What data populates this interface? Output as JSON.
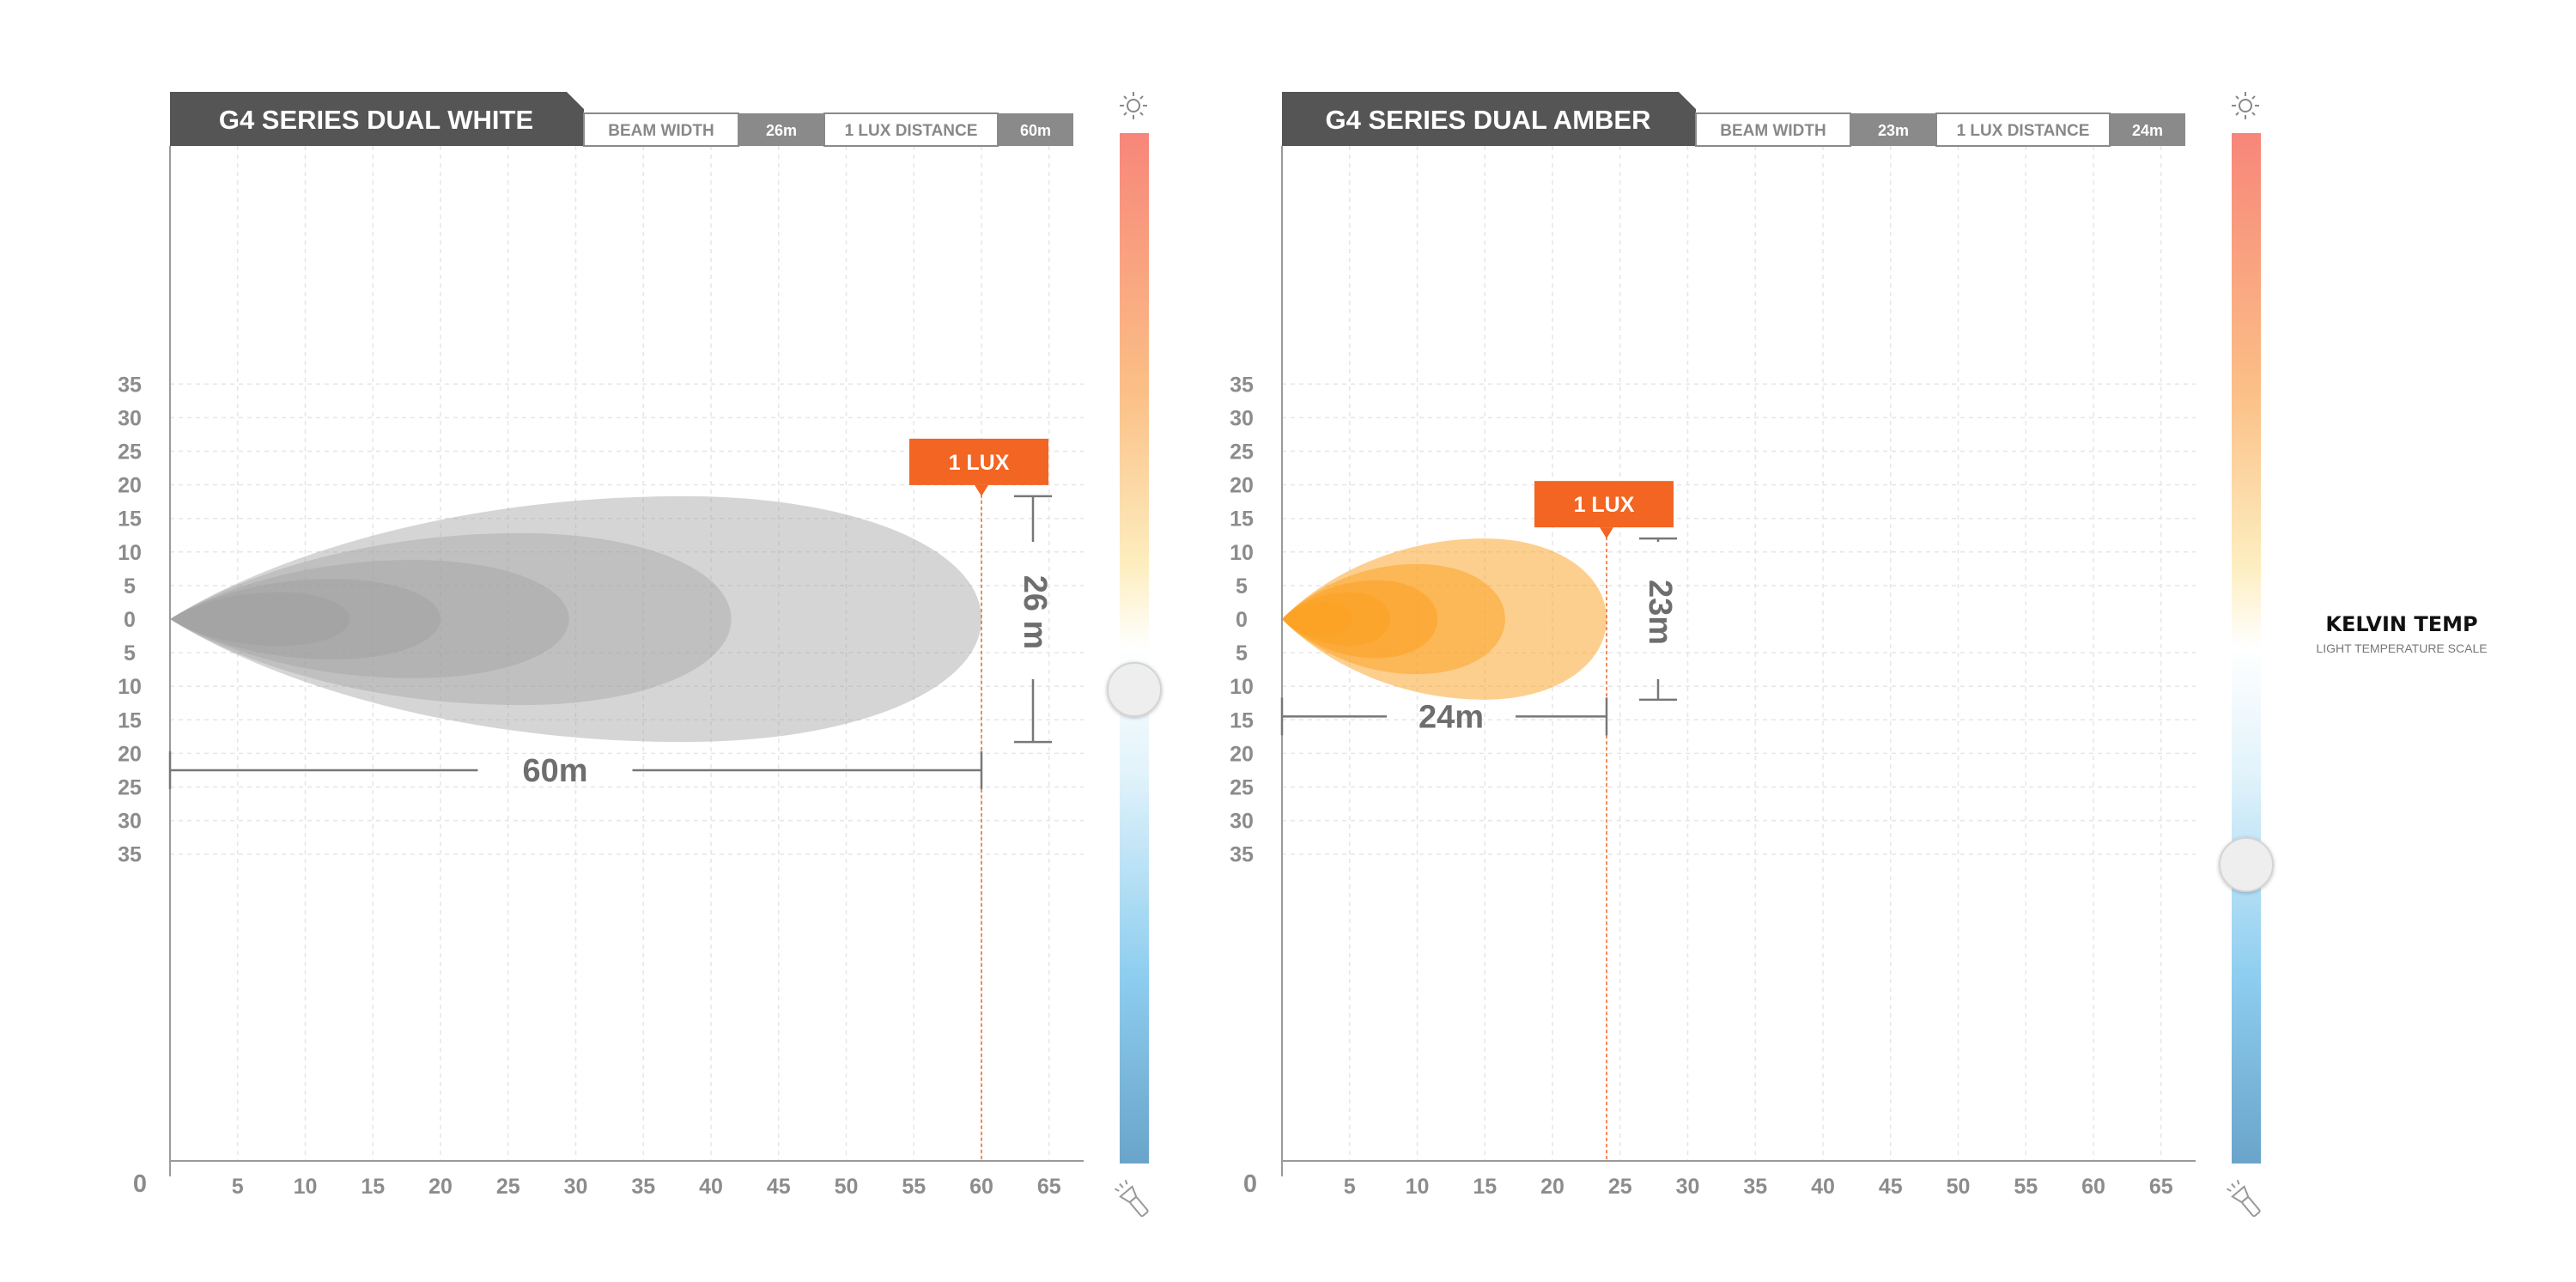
{
  "chart_data": [
    {
      "type": "area",
      "title": "G4 SERIES DUAL WHITE",
      "stats": [
        {
          "label": "BEAM WIDTH",
          "value": "26m"
        },
        {
          "label": "1 LUX DISTANCE",
          "value": "60m"
        }
      ],
      "x_ticks": [
        "5",
        "10",
        "15",
        "20",
        "25",
        "30",
        "35",
        "40",
        "45",
        "50",
        "55",
        "60",
        "65"
      ],
      "y_ticks_upper": [
        "35",
        "30",
        "25",
        "20",
        "15",
        "10",
        "5"
      ],
      "y_tick_zero": "0",
      "y_ticks_lower": [
        "5",
        "10",
        "15",
        "20",
        "25",
        "30",
        "35"
      ],
      "origin_label": "0",
      "xlim": [
        0,
        68
      ],
      "ylim": [
        -40,
        35
      ],
      "grid": true,
      "beam_color": "#9a9a9a",
      "beam_layers": [
        {
          "reach": 60,
          "half_width": 18.3,
          "peak_x": 38,
          "opacity": 0.42
        },
        {
          "reach": 41.5,
          "half_width": 12.8,
          "peak_x": 26,
          "opacity": 0.35
        },
        {
          "reach": 29.5,
          "half_width": 8.8,
          "peak_x": 18,
          "opacity": 0.35
        },
        {
          "reach": 20,
          "half_width": 6.0,
          "peak_x": 12,
          "opacity": 0.35
        },
        {
          "reach": 13.3,
          "half_width": 4.0,
          "peak_x": 8,
          "opacity": 0.35
        }
      ],
      "lux_label": "1 LUX",
      "lux_x": 60,
      "width_label": "26 m",
      "distance_label": "60m",
      "distance_y": -22.5,
      "gauge_level": 0.54
    },
    {
      "type": "area",
      "title": "G4 SERIES DUAL AMBER",
      "stats": [
        {
          "label": "BEAM WIDTH",
          "value": "23m"
        },
        {
          "label": "1 LUX DISTANCE",
          "value": "24m"
        }
      ],
      "x_ticks": [
        "5",
        "10",
        "15",
        "20",
        "25",
        "30",
        "35",
        "40",
        "45",
        "50",
        "55",
        "60",
        "65"
      ],
      "y_ticks_upper": [
        "35",
        "30",
        "25",
        "20",
        "15",
        "10",
        "5"
      ],
      "y_tick_zero": "0",
      "y_ticks_lower": [
        "5",
        "10",
        "15",
        "20",
        "25",
        "30",
        "35"
      ],
      "origin_label": "0",
      "xlim": [
        0,
        68
      ],
      "ylim": [
        -40,
        35
      ],
      "grid": true,
      "beam_color": "#fba01e",
      "beam_layers": [
        {
          "reach": 24,
          "half_width": 12.0,
          "peak_x": 15,
          "opacity": 0.5
        },
        {
          "reach": 16.5,
          "half_width": 8.2,
          "peak_x": 10,
          "opacity": 0.5
        },
        {
          "reach": 11.5,
          "half_width": 5.8,
          "peak_x": 7,
          "opacity": 0.5
        },
        {
          "reach": 8,
          "half_width": 4.0,
          "peak_x": 5,
          "opacity": 0.5
        },
        {
          "reach": 5.2,
          "half_width": 2.5,
          "peak_x": 3,
          "opacity": 0.5
        }
      ],
      "lux_label": "1 LUX",
      "lux_x": 24,
      "width_label": "23m",
      "distance_label": "24m",
      "distance_y": -14.5,
      "gauge_level": 0.71
    }
  ],
  "kelvin": {
    "title": "KELVIN TEMP",
    "subtitle": "LIGHT TEMPERATURE SCALE",
    "top_icon": "sun-icon",
    "bottom_icon": "flashlight-icon"
  },
  "colors": {
    "header_bg": "#555555",
    "stat_value_bg": "#8a8a8a",
    "lux_orange": "#f26522",
    "axis": "#999999",
    "tick_text": "#8c8c8c",
    "dimension": "#777777"
  }
}
